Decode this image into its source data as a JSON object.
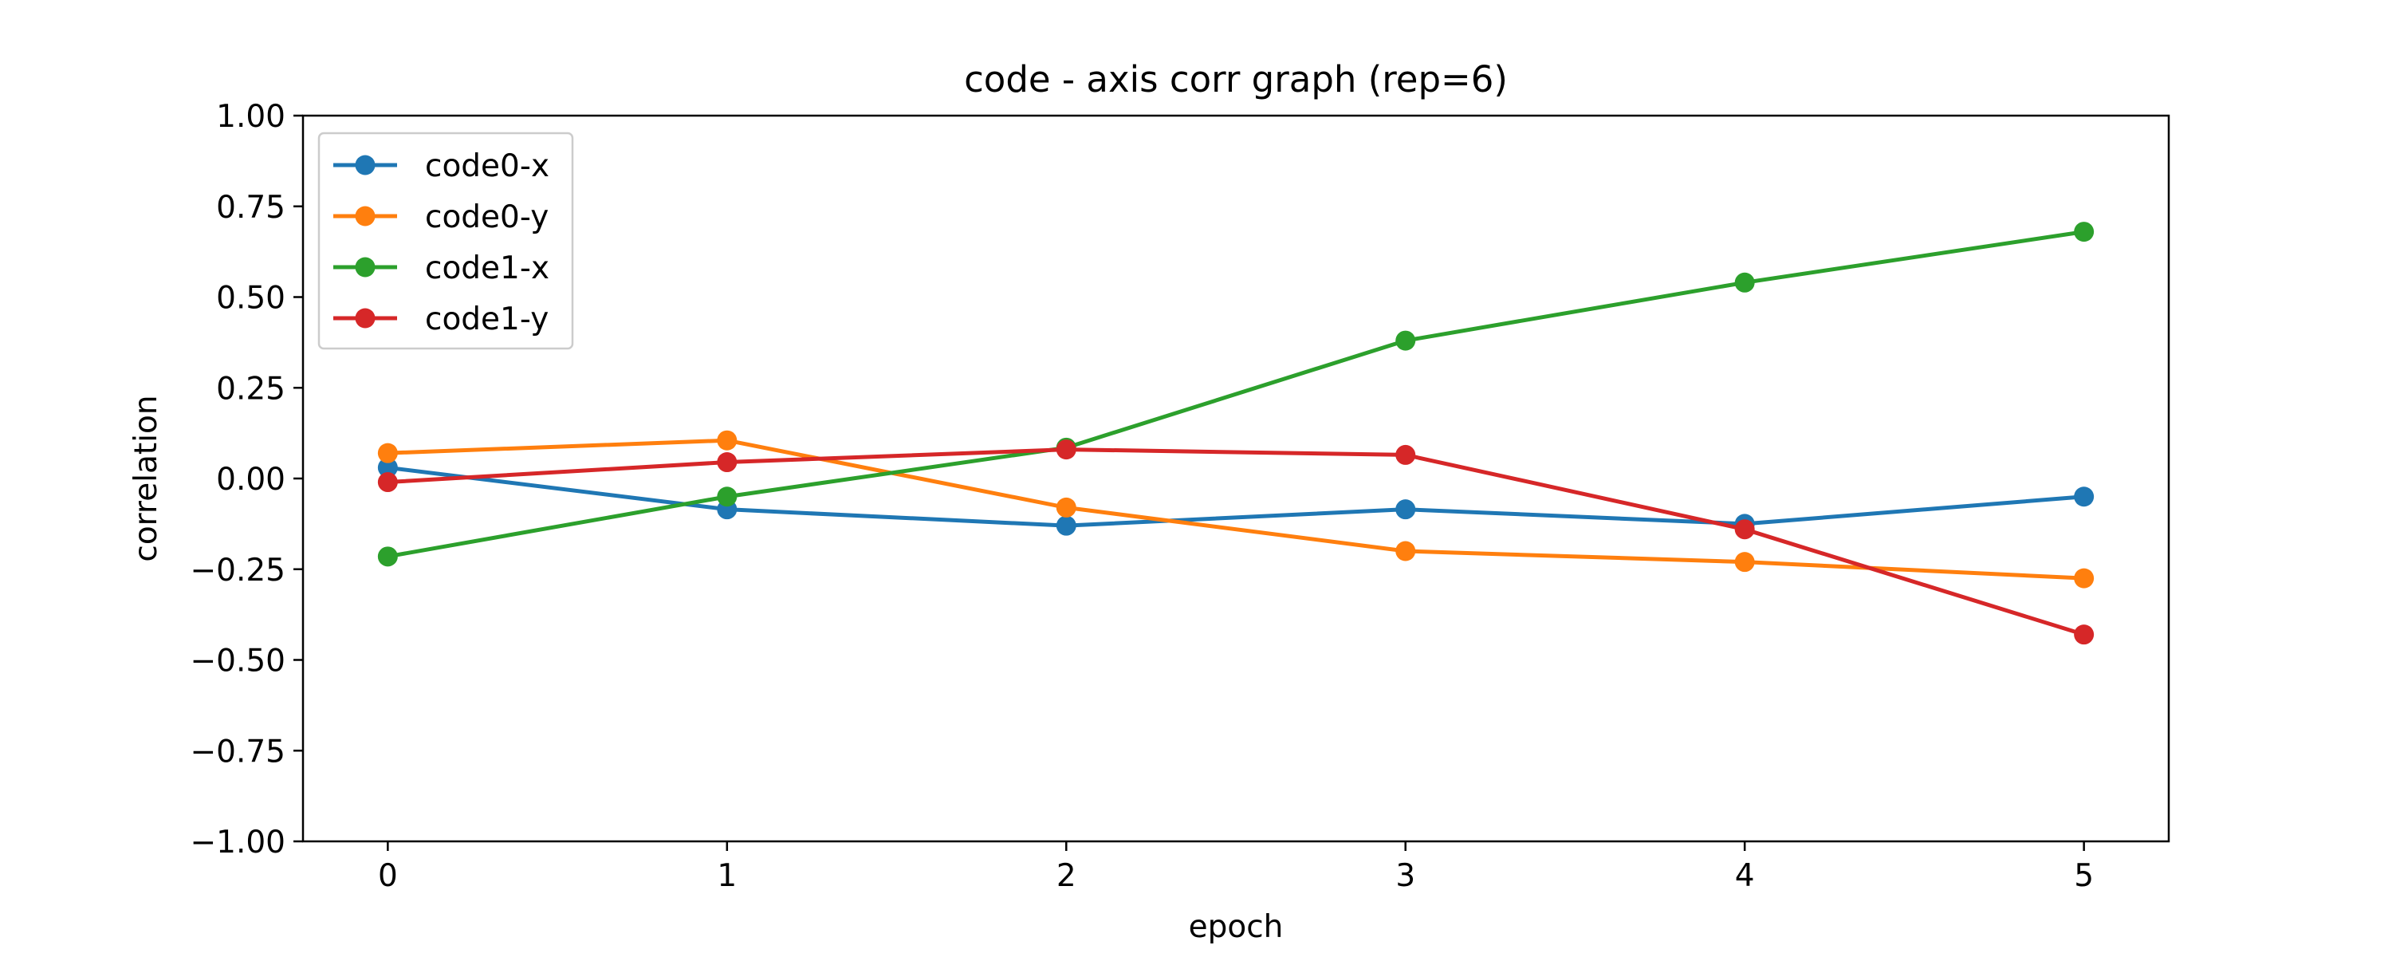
{
  "chart_data": {
    "type": "line",
    "title": "code - axis corr graph (rep=6)",
    "xlabel": "epoch",
    "ylabel": "correlation",
    "x": [
      0,
      1,
      2,
      3,
      4,
      5
    ],
    "xlim": [
      -0.25,
      5.25
    ],
    "ylim": [
      -1.0,
      1.0
    ],
    "xticks": [
      "0",
      "1",
      "2",
      "3",
      "4",
      "5"
    ],
    "yticks": [
      "1.00",
      "0.75",
      "0.50",
      "0.25",
      "0.00",
      "−0.25",
      "−0.50",
      "−0.75",
      "−1.00"
    ],
    "ytick_values": [
      1.0,
      0.75,
      0.5,
      0.25,
      0.0,
      -0.25,
      -0.5,
      -0.75,
      -1.0
    ],
    "grid": false,
    "legend_position": "top-left",
    "series": [
      {
        "name": "code0-x",
        "color": "#1f77b4",
        "values": [
          0.03,
          -0.085,
          -0.13,
          -0.085,
          -0.125,
          -0.05
        ]
      },
      {
        "name": "code0-y",
        "color": "#ff7f0e",
        "values": [
          0.07,
          0.105,
          -0.08,
          -0.2,
          -0.23,
          -0.275
        ]
      },
      {
        "name": "code1-x",
        "color": "#2ca02c",
        "values": [
          -0.215,
          -0.05,
          0.085,
          0.38,
          0.54,
          0.68
        ]
      },
      {
        "name": "code1-y",
        "color": "#d62728",
        "values": [
          -0.01,
          0.045,
          0.08,
          0.065,
          -0.14,
          -0.43
        ]
      }
    ]
  }
}
